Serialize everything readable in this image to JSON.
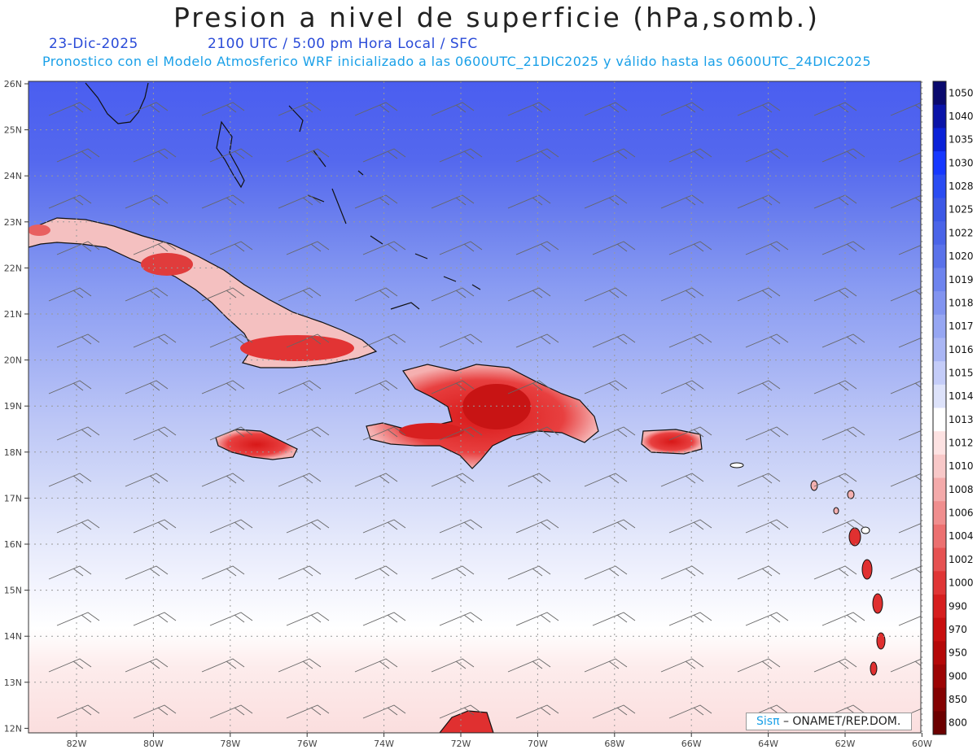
{
  "title": "Presion a nivel de superficie (hPa,somb.)",
  "date": "23-Dic-2025",
  "time": "2100 UTC / 5:00 pm Hora Local / SFC",
  "subtitle": "Pronostico con el Modelo Atmosferico WRF inicializado a las 0600UTC_21DIC2025 y válido hasta las  0600UTC_24DIC2025",
  "credit_logo": "Sisπ",
  "credit_text": " – ONAMET/REP.DOM.",
  "lat_labels": [
    "26N",
    "25N",
    "24N",
    "23N",
    "22N",
    "21N",
    "20N",
    "19N",
    "18N",
    "17N",
    "16N",
    "15N",
    "14N",
    "13N",
    "12N"
  ],
  "lon_labels": [
    "82W",
    "80W",
    "78W",
    "76W",
    "74W",
    "72W",
    "70W",
    "68W",
    "66W",
    "64W",
    "62W",
    "60W"
  ],
  "colorbar": {
    "levels": [
      "1050",
      "1040",
      "1035",
      "1030",
      "1028",
      "1025",
      "1022",
      "1020",
      "1019",
      "1018",
      "1017",
      "1016",
      "1015",
      "1014",
      "1013",
      "1012",
      "1010",
      "1008",
      "1006",
      "1004",
      "1002",
      "1000",
      "990",
      "970",
      "950",
      "900",
      "850",
      "800"
    ],
    "colors": [
      "#0a0a6e",
      "#0a14a8",
      "#0a22d8",
      "#1638ff",
      "#2a4cf2",
      "#3c58e6",
      "#4a64e8",
      "#5a72ea",
      "#6e84ee",
      "#8294f0",
      "#96a6f2",
      "#aab6f4",
      "#c4ccf8",
      "#dde2fa",
      "#ffffff",
      "#fde2e2",
      "#f8c8c8",
      "#f4aaaa",
      "#f08e8e",
      "#ec7070",
      "#e65252",
      "#e03636",
      "#d61e1e",
      "#c80e0e",
      "#b40808",
      "#9c0404",
      "#840202",
      "#6c0000"
    ]
  }
}
